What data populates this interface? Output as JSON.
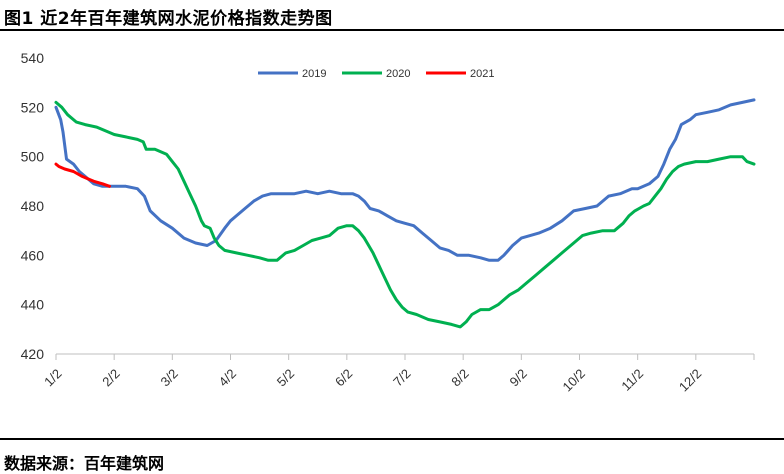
{
  "header": {
    "title": "图1  近2年百年建筑网水泥价格指数走势图"
  },
  "footer": {
    "source": "数据来源：百年建筑网"
  },
  "chart_data": {
    "type": "line",
    "title": "图1  近2年百年建筑网水泥价格指数走势图",
    "xlabel": "",
    "ylabel": "",
    "ylim": [
      420,
      540
    ],
    "y_ticks": [
      420,
      440,
      460,
      480,
      500,
      520,
      540
    ],
    "x_range": [
      0,
      12
    ],
    "x_ticks": [
      {
        "v": 0,
        "label": "1/2"
      },
      {
        "v": 1,
        "label": "2/2"
      },
      {
        "v": 2,
        "label": "3/2"
      },
      {
        "v": 3,
        "label": "4/2"
      },
      {
        "v": 4,
        "label": "5/2"
      },
      {
        "v": 5,
        "label": "6/2"
      },
      {
        "v": 6,
        "label": "7/2"
      },
      {
        "v": 7,
        "label": "8/2"
      },
      {
        "v": 8,
        "label": "9/2"
      },
      {
        "v": 9,
        "label": "10/2"
      },
      {
        "v": 10,
        "label": "11/2"
      },
      {
        "v": 11,
        "label": "12/2"
      }
    ],
    "legend_position": "top-center",
    "grid": false,
    "series": [
      {
        "name": "2019",
        "color": "#4472c4",
        "points": [
          [
            0.0,
            520
          ],
          [
            0.08,
            515
          ],
          [
            0.12,
            510
          ],
          [
            0.18,
            499
          ],
          [
            0.3,
            497
          ],
          [
            0.4,
            494
          ],
          [
            0.5,
            492
          ],
          [
            0.65,
            489
          ],
          [
            0.8,
            488
          ],
          [
            1.0,
            488
          ],
          [
            1.2,
            488
          ],
          [
            1.4,
            487
          ],
          [
            1.52,
            484
          ],
          [
            1.62,
            478
          ],
          [
            1.8,
            474
          ],
          [
            2.0,
            471
          ],
          [
            2.2,
            467
          ],
          [
            2.4,
            465
          ],
          [
            2.6,
            464
          ],
          [
            2.75,
            466
          ],
          [
            2.9,
            471
          ],
          [
            3.0,
            474
          ],
          [
            3.1,
            476
          ],
          [
            3.25,
            479
          ],
          [
            3.4,
            482
          ],
          [
            3.55,
            484
          ],
          [
            3.7,
            485
          ],
          [
            3.9,
            485
          ],
          [
            4.1,
            485
          ],
          [
            4.3,
            486
          ],
          [
            4.5,
            485
          ],
          [
            4.7,
            486
          ],
          [
            4.9,
            485
          ],
          [
            5.0,
            485
          ],
          [
            5.1,
            485
          ],
          [
            5.2,
            484
          ],
          [
            5.3,
            482
          ],
          [
            5.4,
            479
          ],
          [
            5.55,
            478
          ],
          [
            5.7,
            476
          ],
          [
            5.85,
            474
          ],
          [
            6.0,
            473
          ],
          [
            6.15,
            472
          ],
          [
            6.3,
            469
          ],
          [
            6.45,
            466
          ],
          [
            6.6,
            463
          ],
          [
            6.75,
            462
          ],
          [
            6.9,
            460
          ],
          [
            7.1,
            460
          ],
          [
            7.3,
            459
          ],
          [
            7.45,
            458
          ],
          [
            7.6,
            458
          ],
          [
            7.7,
            460
          ],
          [
            7.85,
            464
          ],
          [
            8.0,
            467
          ],
          [
            8.15,
            468
          ],
          [
            8.3,
            469
          ],
          [
            8.5,
            471
          ],
          [
            8.7,
            474
          ],
          [
            8.9,
            478
          ],
          [
            9.1,
            479
          ],
          [
            9.3,
            480
          ],
          [
            9.5,
            484
          ],
          [
            9.7,
            485
          ],
          [
            9.9,
            487
          ],
          [
            10.0,
            487
          ],
          [
            10.2,
            489
          ],
          [
            10.35,
            492
          ],
          [
            10.45,
            497
          ],
          [
            10.55,
            503
          ],
          [
            10.65,
            507
          ],
          [
            10.75,
            513
          ],
          [
            10.9,
            515
          ],
          [
            11.0,
            517
          ],
          [
            11.2,
            518
          ],
          [
            11.4,
            519
          ],
          [
            11.6,
            521
          ],
          [
            11.8,
            522
          ],
          [
            12.0,
            523
          ]
        ]
      },
      {
        "name": "2020",
        "color": "#00b050",
        "points": [
          [
            0.0,
            522
          ],
          [
            0.1,
            520
          ],
          [
            0.2,
            517
          ],
          [
            0.35,
            514
          ],
          [
            0.5,
            513
          ],
          [
            0.7,
            512
          ],
          [
            0.9,
            510
          ],
          [
            1.0,
            509
          ],
          [
            1.2,
            508
          ],
          [
            1.4,
            507
          ],
          [
            1.5,
            506
          ],
          [
            1.55,
            503
          ],
          [
            1.7,
            503
          ],
          [
            1.8,
            502
          ],
          [
            1.9,
            501
          ],
          [
            2.0,
            498
          ],
          [
            2.1,
            495
          ],
          [
            2.2,
            490
          ],
          [
            2.3,
            485
          ],
          [
            2.4,
            480
          ],
          [
            2.5,
            474
          ],
          [
            2.55,
            472
          ],
          [
            2.65,
            471
          ],
          [
            2.72,
            467
          ],
          [
            2.8,
            464
          ],
          [
            2.9,
            462
          ],
          [
            3.1,
            461
          ],
          [
            3.3,
            460
          ],
          [
            3.5,
            459
          ],
          [
            3.65,
            458
          ],
          [
            3.8,
            458
          ],
          [
            3.95,
            461
          ],
          [
            4.1,
            462
          ],
          [
            4.25,
            464
          ],
          [
            4.4,
            466
          ],
          [
            4.55,
            467
          ],
          [
            4.7,
            468
          ],
          [
            4.85,
            471
          ],
          [
            5.0,
            472
          ],
          [
            5.1,
            472
          ],
          [
            5.2,
            470
          ],
          [
            5.3,
            467
          ],
          [
            5.35,
            465
          ],
          [
            5.45,
            461
          ],
          [
            5.55,
            456
          ],
          [
            5.65,
            451
          ],
          [
            5.75,
            446
          ],
          [
            5.85,
            442
          ],
          [
            5.95,
            439
          ],
          [
            6.05,
            437
          ],
          [
            6.2,
            436
          ],
          [
            6.4,
            434
          ],
          [
            6.6,
            433
          ],
          [
            6.8,
            432
          ],
          [
            6.95,
            431
          ],
          [
            7.05,
            433
          ],
          [
            7.15,
            436
          ],
          [
            7.3,
            438
          ],
          [
            7.45,
            438
          ],
          [
            7.6,
            440
          ],
          [
            7.7,
            442
          ],
          [
            7.8,
            444
          ],
          [
            7.95,
            446
          ],
          [
            8.1,
            449
          ],
          [
            8.25,
            452
          ],
          [
            8.4,
            455
          ],
          [
            8.55,
            458
          ],
          [
            8.7,
            461
          ],
          [
            8.9,
            465
          ],
          [
            9.05,
            468
          ],
          [
            9.2,
            469
          ],
          [
            9.4,
            470
          ],
          [
            9.6,
            470
          ],
          [
            9.75,
            473
          ],
          [
            9.85,
            476
          ],
          [
            9.95,
            478
          ],
          [
            10.1,
            480
          ],
          [
            10.2,
            481
          ],
          [
            10.3,
            484
          ],
          [
            10.4,
            487
          ],
          [
            10.5,
            491
          ],
          [
            10.6,
            494
          ],
          [
            10.7,
            496
          ],
          [
            10.8,
            497
          ],
          [
            11.0,
            498
          ],
          [
            11.2,
            498
          ],
          [
            11.4,
            499
          ],
          [
            11.6,
            500
          ],
          [
            11.8,
            500
          ],
          [
            11.88,
            498
          ],
          [
            12.0,
            497
          ]
        ]
      },
      {
        "name": "2021",
        "color": "#ff0000",
        "points": [
          [
            0.0,
            497
          ],
          [
            0.05,
            496
          ],
          [
            0.15,
            495
          ],
          [
            0.3,
            494
          ],
          [
            0.45,
            492
          ],
          [
            0.55,
            491
          ],
          [
            0.65,
            490
          ],
          [
            0.8,
            489
          ],
          [
            0.92,
            488
          ]
        ]
      }
    ]
  }
}
